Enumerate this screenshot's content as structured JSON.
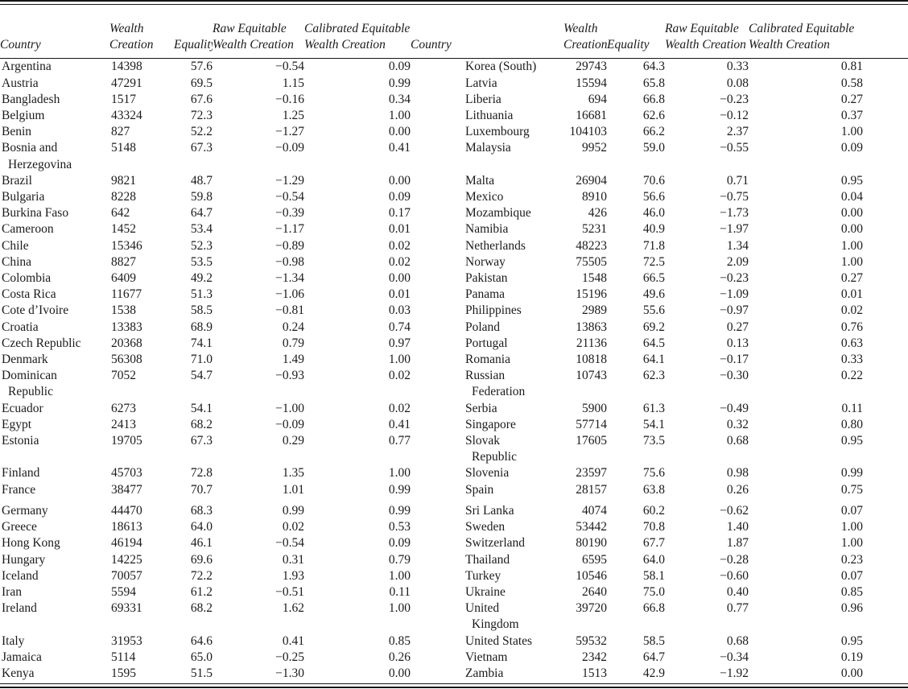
{
  "page": {
    "background": "#ffffff",
    "text_color": "#1b1b1b",
    "rule_color": "#141414"
  },
  "table": {
    "column_headers": {
      "country": "Country",
      "wealth_creation": [
        "Wealth",
        "Creation"
      ],
      "equality": "Equality",
      "raw_equitable": [
        "Raw Equitable",
        "Wealth Creation"
      ],
      "calibrated_equitable": [
        "Calibrated Equitable",
        "Wealth Creation"
      ]
    },
    "rows": [
      {
        "left": {
          "country": [
            "Argentina"
          ],
          "wealth_creation": "14398",
          "equality": "57.6",
          "raw": "−0.54",
          "calibrated": "0.09"
        },
        "right": {
          "country": [
            "Korea (South)"
          ],
          "wealth_creation": "29743",
          "equality": "64.3",
          "raw": "0.33",
          "calibrated": "0.81"
        }
      },
      {
        "left": {
          "country": [
            "Austria"
          ],
          "wealth_creation": "47291",
          "equality": "69.5",
          "raw": "1.15",
          "calibrated": "0.99"
        },
        "right": {
          "country": [
            "Latvia"
          ],
          "wealth_creation": "15594",
          "equality": "65.8",
          "raw": "0.08",
          "calibrated": "0.58"
        }
      },
      {
        "left": {
          "country": [
            "Bangladesh"
          ],
          "wealth_creation": "1517",
          "equality": "67.6",
          "raw": "−0.16",
          "calibrated": "0.34"
        },
        "right": {
          "country": [
            "Liberia"
          ],
          "wealth_creation": "694",
          "equality": "66.8",
          "raw": "−0.23",
          "calibrated": "0.27"
        }
      },
      {
        "left": {
          "country": [
            "Belgium"
          ],
          "wealth_creation": "43324",
          "equality": "72.3",
          "raw": "1.25",
          "calibrated": "1.00"
        },
        "right": {
          "country": [
            "Lithuania"
          ],
          "wealth_creation": "16681",
          "equality": "62.6",
          "raw": "−0.12",
          "calibrated": "0.37"
        }
      },
      {
        "left": {
          "country": [
            "Benin"
          ],
          "wealth_creation": "827",
          "equality": "52.2",
          "raw": "−1.27",
          "calibrated": "0.00"
        },
        "right": {
          "country": [
            "Luxembourg"
          ],
          "wealth_creation": "104103",
          "equality": "66.2",
          "raw": "2.37",
          "calibrated": "1.00"
        }
      },
      {
        "left": {
          "country": [
            "Bosnia and",
            "Herzegovina"
          ],
          "wealth_creation": "5148",
          "equality": "67.3",
          "raw": "−0.09",
          "calibrated": "0.41"
        },
        "right": {
          "country": [
            "Malaysia"
          ],
          "wealth_creation": "9952",
          "equality": "59.0",
          "raw": "−0.55",
          "calibrated": "0.09"
        }
      },
      {
        "left": {
          "country": [
            "Brazil"
          ],
          "wealth_creation": "9821",
          "equality": "48.7",
          "raw": "−1.29",
          "calibrated": "0.00"
        },
        "right": {
          "country": [
            "Malta"
          ],
          "wealth_creation": "26904",
          "equality": "70.6",
          "raw": "0.71",
          "calibrated": "0.95"
        }
      },
      {
        "left": {
          "country": [
            "Bulgaria"
          ],
          "wealth_creation": "8228",
          "equality": "59.8",
          "raw": "−0.54",
          "calibrated": "0.09"
        },
        "right": {
          "country": [
            "Mexico"
          ],
          "wealth_creation": "8910",
          "equality": "56.6",
          "raw": "−0.75",
          "calibrated": "0.04"
        }
      },
      {
        "left": {
          "country": [
            "Burkina Faso"
          ],
          "wealth_creation": "642",
          "equality": "64.7",
          "raw": "−0.39",
          "calibrated": "0.17"
        },
        "right": {
          "country": [
            "Mozambique"
          ],
          "wealth_creation": "426",
          "equality": "46.0",
          "raw": "−1.73",
          "calibrated": "0.00"
        }
      },
      {
        "left": {
          "country": [
            "Cameroon"
          ],
          "wealth_creation": "1452",
          "equality": "53.4",
          "raw": "−1.17",
          "calibrated": "0.01"
        },
        "right": {
          "country": [
            "Namibia"
          ],
          "wealth_creation": "5231",
          "equality": "40.9",
          "raw": "−1.97",
          "calibrated": "0.00"
        }
      },
      {
        "left": {
          "country": [
            "Chile"
          ],
          "wealth_creation": "15346",
          "equality": "52.3",
          "raw": "−0.89",
          "calibrated": "0.02"
        },
        "right": {
          "country": [
            "Netherlands"
          ],
          "wealth_creation": "48223",
          "equality": "71.8",
          "raw": "1.34",
          "calibrated": "1.00"
        }
      },
      {
        "left": {
          "country": [
            "China"
          ],
          "wealth_creation": "8827",
          "equality": "53.5",
          "raw": "−0.98",
          "calibrated": "0.02"
        },
        "right": {
          "country": [
            "Norway"
          ],
          "wealth_creation": "75505",
          "equality": "72.5",
          "raw": "2.09",
          "calibrated": "1.00"
        }
      },
      {
        "left": {
          "country": [
            "Colombia"
          ],
          "wealth_creation": "6409",
          "equality": "49.2",
          "raw": "−1.34",
          "calibrated": "0.00"
        },
        "right": {
          "country": [
            "Pakistan"
          ],
          "wealth_creation": "1548",
          "equality": "66.5",
          "raw": "−0.23",
          "calibrated": "0.27"
        }
      },
      {
        "left": {
          "country": [
            "Costa Rica"
          ],
          "wealth_creation": "11677",
          "equality": "51.3",
          "raw": "−1.06",
          "calibrated": "0.01"
        },
        "right": {
          "country": [
            "Panama"
          ],
          "wealth_creation": "15196",
          "equality": "49.6",
          "raw": "−1.09",
          "calibrated": "0.01"
        }
      },
      {
        "left": {
          "country": [
            "Cote d’Ivoire"
          ],
          "wealth_creation": "1538",
          "equality": "58.5",
          "raw": "−0.81",
          "calibrated": "0.03"
        },
        "right": {
          "country": [
            "Philippines"
          ],
          "wealth_creation": "2989",
          "equality": "55.6",
          "raw": "−0.97",
          "calibrated": "0.02"
        }
      },
      {
        "left": {
          "country": [
            "Croatia"
          ],
          "wealth_creation": "13383",
          "equality": "68.9",
          "raw": "0.24",
          "calibrated": "0.74"
        },
        "right": {
          "country": [
            "Poland"
          ],
          "wealth_creation": "13863",
          "equality": "69.2",
          "raw": "0.27",
          "calibrated": "0.76"
        }
      },
      {
        "left": {
          "country": [
            "Czech Republic"
          ],
          "wealth_creation": "20368",
          "equality": "74.1",
          "raw": "0.79",
          "calibrated": "0.97"
        },
        "right": {
          "country": [
            "Portugal"
          ],
          "wealth_creation": "21136",
          "equality": "64.5",
          "raw": "0.13",
          "calibrated": "0.63"
        }
      },
      {
        "left": {
          "country": [
            "Denmark"
          ],
          "wealth_creation": "56308",
          "equality": "71.0",
          "raw": "1.49",
          "calibrated": "1.00"
        },
        "right": {
          "country": [
            "Romania"
          ],
          "wealth_creation": "10818",
          "equality": "64.1",
          "raw": "−0.17",
          "calibrated": "0.33"
        }
      },
      {
        "left": {
          "country": [
            "Dominican",
            "Republic"
          ],
          "wealth_creation": "7052",
          "equality": "54.7",
          "raw": "−0.93",
          "calibrated": "0.02"
        },
        "right": {
          "country": [
            "Russian",
            "Federation"
          ],
          "wealth_creation": "10743",
          "equality": "62.3",
          "raw": "−0.30",
          "calibrated": "0.22"
        }
      },
      {
        "left": {
          "country": [
            "Ecuador"
          ],
          "wealth_creation": "6273",
          "equality": "54.1",
          "raw": "−1.00",
          "calibrated": "0.02"
        },
        "right": {
          "country": [
            "Serbia"
          ],
          "wealth_creation": "5900",
          "equality": "61.3",
          "raw": "−0.49",
          "calibrated": "0.11"
        }
      },
      {
        "left": {
          "country": [
            "Egypt"
          ],
          "wealth_creation": "2413",
          "equality": "68.2",
          "raw": "−0.09",
          "calibrated": "0.41"
        },
        "right": {
          "country": [
            "Singapore"
          ],
          "wealth_creation": "57714",
          "equality": "54.1",
          "raw": "0.32",
          "calibrated": "0.80"
        }
      },
      {
        "left": {
          "country": [
            "Estonia"
          ],
          "wealth_creation": "19705",
          "equality": "67.3",
          "raw": "0.29",
          "calibrated": "0.77"
        },
        "right": {
          "country": [
            "Slovak",
            "Republic"
          ],
          "wealth_creation": "17605",
          "equality": "73.5",
          "raw": "0.68",
          "calibrated": "0.95"
        }
      },
      {
        "left": {
          "country": [
            "Finland"
          ],
          "wealth_creation": "45703",
          "equality": "72.8",
          "raw": "1.35",
          "calibrated": "1.00"
        },
        "right": {
          "country": [
            "Slovenia"
          ],
          "wealth_creation": "23597",
          "equality": "75.6",
          "raw": "0.98",
          "calibrated": "0.99"
        }
      },
      {
        "left": {
          "country": [
            "France"
          ],
          "wealth_creation": "38477",
          "equality": "70.7",
          "raw": "1.01",
          "calibrated": "0.99"
        },
        "right": {
          "country": [
            "Spain"
          ],
          "wealth_creation": "28157",
          "equality": "63.8",
          "raw": "0.26",
          "calibrated": "0.75"
        }
      },
      {
        "group_break_before": true,
        "left": {
          "country": [
            "Germany"
          ],
          "wealth_creation": "44470",
          "equality": "68.3",
          "raw": "0.99",
          "calibrated": "0.99"
        },
        "right": {
          "country": [
            "Sri Lanka"
          ],
          "wealth_creation": "4074",
          "equality": "60.2",
          "raw": "−0.62",
          "calibrated": "0.07"
        }
      },
      {
        "left": {
          "country": [
            "Greece"
          ],
          "wealth_creation": "18613",
          "equality": "64.0",
          "raw": "0.02",
          "calibrated": "0.53"
        },
        "right": {
          "country": [
            "Sweden"
          ],
          "wealth_creation": "53442",
          "equality": "70.8",
          "raw": "1.40",
          "calibrated": "1.00"
        }
      },
      {
        "left": {
          "country": [
            "Hong Kong"
          ],
          "wealth_creation": "46194",
          "equality": "46.1",
          "raw": "−0.54",
          "calibrated": "0.09"
        },
        "right": {
          "country": [
            "Switzerland"
          ],
          "wealth_creation": "80190",
          "equality": "67.7",
          "raw": "1.87",
          "calibrated": "1.00"
        }
      },
      {
        "left": {
          "country": [
            "Hungary"
          ],
          "wealth_creation": "14225",
          "equality": "69.6",
          "raw": "0.31",
          "calibrated": "0.79"
        },
        "right": {
          "country": [
            "Thailand"
          ],
          "wealth_creation": "6595",
          "equality": "64.0",
          "raw": "−0.28",
          "calibrated": "0.23"
        }
      },
      {
        "left": {
          "country": [
            "Iceland"
          ],
          "wealth_creation": "70057",
          "equality": "72.2",
          "raw": "1.93",
          "calibrated": "1.00"
        },
        "right": {
          "country": [
            "Turkey"
          ],
          "wealth_creation": "10546",
          "equality": "58.1",
          "raw": "−0.60",
          "calibrated": "0.07"
        }
      },
      {
        "left": {
          "country": [
            "Iran"
          ],
          "wealth_creation": "5594",
          "equality": "61.2",
          "raw": "−0.51",
          "calibrated": "0.11"
        },
        "right": {
          "country": [
            "Ukraine"
          ],
          "wealth_creation": "2640",
          "equality": "75.0",
          "raw": "0.40",
          "calibrated": "0.85"
        }
      },
      {
        "left": {
          "country": [
            "Ireland"
          ],
          "wealth_creation": "69331",
          "equality": "68.2",
          "raw": "1.62",
          "calibrated": "1.00"
        },
        "right": {
          "country": [
            "United",
            "Kingdom"
          ],
          "wealth_creation": "39720",
          "equality": "66.8",
          "raw": "0.77",
          "calibrated": "0.96"
        }
      },
      {
        "left": {
          "country": [
            "Italy"
          ],
          "wealth_creation": "31953",
          "equality": "64.6",
          "raw": "0.41",
          "calibrated": "0.85"
        },
        "right": {
          "country": [
            "United States"
          ],
          "wealth_creation": "59532",
          "equality": "58.5",
          "raw": "0.68",
          "calibrated": "0.95"
        }
      },
      {
        "left": {
          "country": [
            "Jamaica"
          ],
          "wealth_creation": "5114",
          "equality": "65.0",
          "raw": "−0.25",
          "calibrated": "0.26"
        },
        "right": {
          "country": [
            "Vietnam"
          ],
          "wealth_creation": "2342",
          "equality": "64.7",
          "raw": "−0.34",
          "calibrated": "0.19"
        }
      },
      {
        "left": {
          "country": [
            "Kenya"
          ],
          "wealth_creation": "1595",
          "equality": "51.5",
          "raw": "−1.30",
          "calibrated": "0.00"
        },
        "right": {
          "country": [
            "Zambia"
          ],
          "wealth_creation": "1513",
          "equality": "42.9",
          "raw": "−1.92",
          "calibrated": "0.00"
        }
      }
    ]
  }
}
